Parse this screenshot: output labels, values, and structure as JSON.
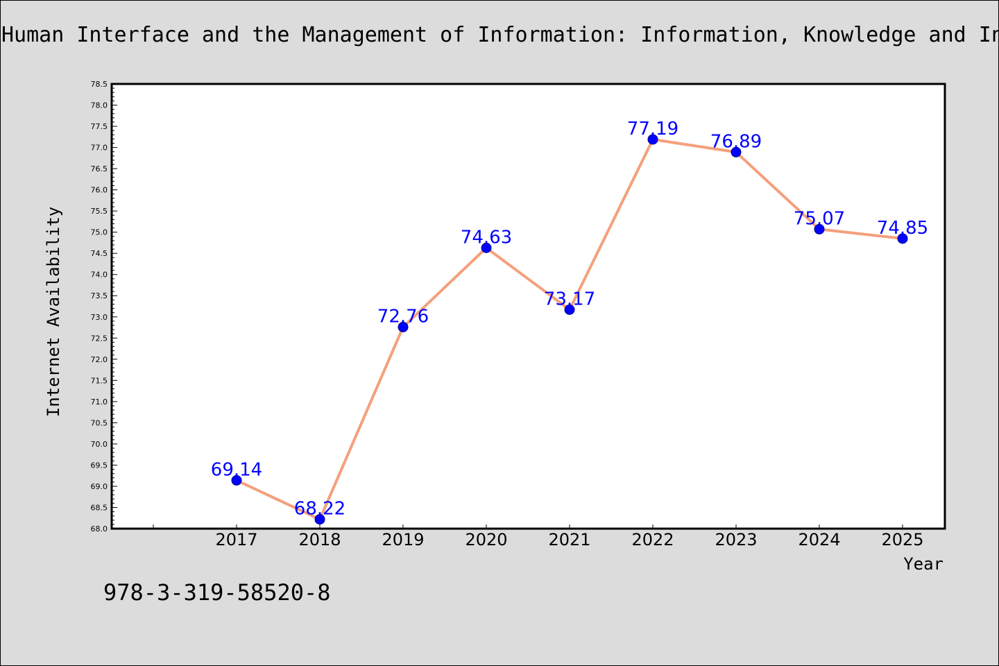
{
  "figure": {
    "title": "Human Interface and the Management of Information: Information, Knowledge and In",
    "footer_text": "978-3-319-58520-8"
  },
  "chart_data": {
    "type": "line",
    "title": "Human Interface and the Management of Information: Information, Knowledge and In",
    "xlabel": "Year",
    "ylabel": "Internet Availability",
    "categories": [
      "2017",
      "2018",
      "2019",
      "2020",
      "2021",
      "2022",
      "2023",
      "2024",
      "2025"
    ],
    "series": [
      {
        "values": [
          69.14,
          68.22,
          72.76,
          74.63,
          73.17,
          77.19,
          76.89,
          75.07,
          74.85
        ],
        "line_color": "#f4a07c",
        "marker_color": "#0000ff",
        "label_color": "#0000ff"
      }
    ],
    "data_labels": [
      "69.14",
      "68.22",
      "72.76",
      "74.63",
      "73.17",
      "77.19",
      "76.89",
      "75.07",
      "74.85"
    ],
    "ylim": [
      68.0,
      78.5
    ],
    "yticks": [
      "68.0",
      "68.5",
      "69.0",
      "69.5",
      "70.0",
      "70.5",
      "71.0",
      "71.5",
      "72.0",
      "72.5",
      "73.0",
      "73.5",
      "74.0",
      "74.5",
      "75.0",
      "75.5",
      "76.0",
      "76.5",
      "77.0",
      "77.5",
      "78.0",
      "78.5"
    ],
    "grid": false,
    "legend": "none"
  }
}
